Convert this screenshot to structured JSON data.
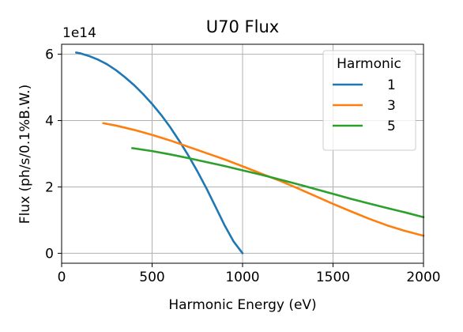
{
  "chart_data": {
    "type": "line",
    "title": "U70 Flux",
    "xlabel": "Harmonic Energy (eV)",
    "ylabel": "Flux (ph/s/0.1%B.W.)",
    "y_offset_label": "1e14",
    "xlim": [
      0,
      2000
    ],
    "ylim": [
      -0.3,
      6.3
    ],
    "x_ticks": [
      0,
      500,
      1000,
      1500,
      2000
    ],
    "y_ticks": [
      0,
      2,
      4,
      6
    ],
    "grid": true,
    "legend": {
      "title": "Harmonic",
      "placement": "top-right"
    },
    "series": [
      {
        "name": "1",
        "color": "#1f77b4",
        "x": [
          80,
          100,
          150,
          200,
          250,
          300,
          350,
          400,
          450,
          500,
          550,
          600,
          650,
          700,
          750,
          800,
          850,
          900,
          950,
          1000
        ],
        "y": [
          6.05,
          6.03,
          5.95,
          5.84,
          5.7,
          5.52,
          5.31,
          5.07,
          4.8,
          4.5,
          4.17,
          3.8,
          3.39,
          2.95,
          2.47,
          1.96,
          1.41,
          0.85,
          0.36,
          0.0
        ]
      },
      {
        "name": "3",
        "color": "#ff7f0e",
        "x": [
          230,
          300,
          400,
          500,
          600,
          700,
          800,
          900,
          1000,
          1100,
          1200,
          1300,
          1400,
          1500,
          1600,
          1700,
          1800,
          1900,
          2000
        ],
        "y": [
          3.92,
          3.85,
          3.72,
          3.57,
          3.4,
          3.21,
          3.02,
          2.83,
          2.62,
          2.41,
          2.2,
          1.97,
          1.73,
          1.49,
          1.26,
          1.04,
          0.84,
          0.67,
          0.53
        ]
      },
      {
        "name": "5",
        "color": "#2ca02c",
        "x": [
          390,
          500,
          600,
          700,
          800,
          900,
          1000,
          1100,
          1200,
          1300,
          1400,
          1500,
          1600,
          1700,
          1800,
          1900,
          2000
        ],
        "y": [
          3.17,
          3.08,
          2.98,
          2.87,
          2.75,
          2.63,
          2.5,
          2.37,
          2.23,
          2.09,
          1.94,
          1.79,
          1.64,
          1.5,
          1.36,
          1.23,
          1.09
        ]
      }
    ]
  }
}
